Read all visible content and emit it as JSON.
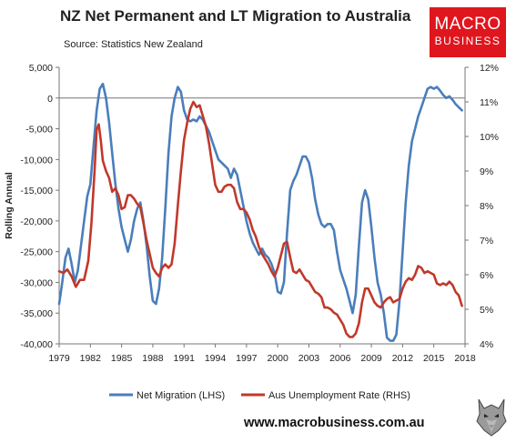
{
  "header": {
    "title": "NZ Net Permanent and LT Migration to Australia",
    "source": "Source: Statistics New Zealand"
  },
  "logo": {
    "line1": "MACRO",
    "line2": "BUSINESS",
    "color": "#e0161e"
  },
  "footer": {
    "url": "www.macrobusiness.com.au",
    "wolf_icon": "wolf-head-icon"
  },
  "chart_data": {
    "type": "line",
    "title": "NZ Net Permanent and LT Migration to Australia",
    "ylabel": "Rolling Annual",
    "x_ticks": [
      "1979",
      "1982",
      "1985",
      "1988",
      "1991",
      "1994",
      "1997",
      "2000",
      "2003",
      "2006",
      "2009",
      "2012",
      "2015",
      "2018"
    ],
    "xlim": [
      1979,
      2018
    ],
    "y_left": {
      "lim": [
        -40000,
        5000
      ],
      "ticks": [
        "5,000",
        "0",
        "-5,000",
        "-10,000",
        "-15,000",
        "-20,000",
        "-25,000",
        "-30,000",
        "-35,000",
        "-40,000"
      ]
    },
    "y_right": {
      "lim": [
        4,
        12
      ],
      "ticks": [
        "12%",
        "11%",
        "10%",
        "9%",
        "8%",
        "7%",
        "6%",
        "5%",
        "4%"
      ]
    },
    "grid": false,
    "legend": "bottom",
    "series": [
      {
        "name": "Net Migration (LHS)",
        "axis": "left",
        "color": "#4a7ebb",
        "points": [
          [
            1979.0,
            -33500
          ],
          [
            1979.3,
            -30000
          ],
          [
            1979.6,
            -26000
          ],
          [
            1979.9,
            -24500
          ],
          [
            1980.2,
            -27000
          ],
          [
            1980.5,
            -30000
          ],
          [
            1980.8,
            -28000
          ],
          [
            1981.1,
            -24000
          ],
          [
            1981.4,
            -20000
          ],
          [
            1981.7,
            -16000
          ],
          [
            1982.0,
            -14000
          ],
          [
            1982.3,
            -8000
          ],
          [
            1982.6,
            -2000
          ],
          [
            1982.9,
            1500
          ],
          [
            1983.2,
            2300
          ],
          [
            1983.5,
            0
          ],
          [
            1983.8,
            -4000
          ],
          [
            1984.1,
            -9000
          ],
          [
            1984.4,
            -14000
          ],
          [
            1984.7,
            -18000
          ],
          [
            1985.0,
            -21000
          ],
          [
            1985.3,
            -23000
          ],
          [
            1985.6,
            -25000
          ],
          [
            1985.9,
            -23000
          ],
          [
            1986.2,
            -20000
          ],
          [
            1986.5,
            -18000
          ],
          [
            1986.8,
            -17000
          ],
          [
            1987.1,
            -20000
          ],
          [
            1987.4,
            -24000
          ],
          [
            1987.7,
            -29000
          ],
          [
            1988.0,
            -33000
          ],
          [
            1988.3,
            -33500
          ],
          [
            1988.6,
            -31000
          ],
          [
            1988.9,
            -26000
          ],
          [
            1989.2,
            -18000
          ],
          [
            1989.5,
            -9000
          ],
          [
            1989.8,
            -3000
          ],
          [
            1990.1,
            0
          ],
          [
            1990.4,
            1800
          ],
          [
            1990.7,
            1000
          ],
          [
            1991.0,
            -2000
          ],
          [
            1991.3,
            -3500
          ],
          [
            1991.6,
            -3800
          ],
          [
            1991.9,
            -3500
          ],
          [
            1992.2,
            -3800
          ],
          [
            1992.5,
            -3000
          ],
          [
            1992.8,
            -3500
          ],
          [
            1993.1,
            -4500
          ],
          [
            1993.4,
            -5500
          ],
          [
            1993.7,
            -7000
          ],
          [
            1994.0,
            -8500
          ],
          [
            1994.3,
            -10000
          ],
          [
            1994.6,
            -10500
          ],
          [
            1994.9,
            -11000
          ],
          [
            1995.2,
            -11500
          ],
          [
            1995.5,
            -13000
          ],
          [
            1995.8,
            -11500
          ],
          [
            1996.1,
            -12500
          ],
          [
            1996.4,
            -15000
          ],
          [
            1996.7,
            -17500
          ],
          [
            1997.0,
            -20000
          ],
          [
            1997.3,
            -22000
          ],
          [
            1997.6,
            -23500
          ],
          [
            1997.9,
            -24500
          ],
          [
            1998.2,
            -25500
          ],
          [
            1998.5,
            -24500
          ],
          [
            1998.8,
            -25500
          ],
          [
            1999.1,
            -26000
          ],
          [
            1999.4,
            -27000
          ],
          [
            1999.7,
            -28500
          ],
          [
            2000.0,
            -31500
          ],
          [
            2000.3,
            -31800
          ],
          [
            2000.6,
            -30000
          ],
          [
            2000.9,
            -22000
          ],
          [
            2001.2,
            -15000
          ],
          [
            2001.5,
            -13500
          ],
          [
            2001.8,
            -12500
          ],
          [
            2002.1,
            -11000
          ],
          [
            2002.4,
            -9500
          ],
          [
            2002.7,
            -9500
          ],
          [
            2003.0,
            -10500
          ],
          [
            2003.3,
            -13000
          ],
          [
            2003.6,
            -16500
          ],
          [
            2003.9,
            -19000
          ],
          [
            2004.2,
            -20500
          ],
          [
            2004.5,
            -21000
          ],
          [
            2004.8,
            -20500
          ],
          [
            2005.1,
            -20500
          ],
          [
            2005.4,
            -21500
          ],
          [
            2005.7,
            -25000
          ],
          [
            2006.0,
            -28000
          ],
          [
            2006.3,
            -29500
          ],
          [
            2006.6,
            -31000
          ],
          [
            2006.9,
            -33000
          ],
          [
            2007.2,
            -35000
          ],
          [
            2007.5,
            -32000
          ],
          [
            2007.8,
            -24000
          ],
          [
            2008.1,
            -17000
          ],
          [
            2008.4,
            -15000
          ],
          [
            2008.7,
            -16500
          ],
          [
            2009.0,
            -21000
          ],
          [
            2009.3,
            -26000
          ],
          [
            2009.6,
            -30000
          ],
          [
            2009.9,
            -32000
          ],
          [
            2010.2,
            -35000
          ],
          [
            2010.5,
            -39000
          ],
          [
            2010.8,
            -39500
          ],
          [
            2011.1,
            -39500
          ],
          [
            2011.4,
            -38500
          ],
          [
            2011.7,
            -33000
          ],
          [
            2012.0,
            -25000
          ],
          [
            2012.3,
            -17000
          ],
          [
            2012.6,
            -11000
          ],
          [
            2012.9,
            -7000
          ],
          [
            2013.2,
            -5000
          ],
          [
            2013.5,
            -3000
          ],
          [
            2013.8,
            -1500
          ],
          [
            2014.1,
            0
          ],
          [
            2014.4,
            1500
          ],
          [
            2014.7,
            1800
          ],
          [
            2015.0,
            1500
          ],
          [
            2015.3,
            1800
          ],
          [
            2015.6,
            1200
          ],
          [
            2015.9,
            500
          ],
          [
            2016.2,
            0
          ],
          [
            2016.5,
            300
          ],
          [
            2016.8,
            -300
          ],
          [
            2017.1,
            -1000
          ],
          [
            2017.4,
            -1500
          ],
          [
            2017.7,
            -2000
          ]
        ]
      },
      {
        "name": "Aus Unemployment Rate (RHS)",
        "axis": "right",
        "color": "#c0392b",
        "points": [
          [
            1979.0,
            6.1
          ],
          [
            1979.4,
            6.05
          ],
          [
            1979.8,
            6.15
          ],
          [
            1980.2,
            5.95
          ],
          [
            1980.6,
            5.65
          ],
          [
            1981.0,
            5.85
          ],
          [
            1981.4,
            5.85
          ],
          [
            1981.8,
            6.4
          ],
          [
            1982.1,
            7.5
          ],
          [
            1982.4,
            9.0
          ],
          [
            1982.6,
            10.2
          ],
          [
            1982.8,
            10.35
          ],
          [
            1983.0,
            9.9
          ],
          [
            1983.2,
            9.3
          ],
          [
            1983.5,
            9.0
          ],
          [
            1983.8,
            8.8
          ],
          [
            1984.1,
            8.4
          ],
          [
            1984.4,
            8.5
          ],
          [
            1984.7,
            8.3
          ],
          [
            1985.0,
            7.9
          ],
          [
            1985.3,
            7.95
          ],
          [
            1985.6,
            8.3
          ],
          [
            1985.9,
            8.3
          ],
          [
            1986.2,
            8.2
          ],
          [
            1986.5,
            8.05
          ],
          [
            1986.8,
            7.95
          ],
          [
            1987.1,
            7.5
          ],
          [
            1987.4,
            7.0
          ],
          [
            1987.7,
            6.6
          ],
          [
            1988.0,
            6.2
          ],
          [
            1988.3,
            6.05
          ],
          [
            1988.6,
            5.95
          ],
          [
            1988.9,
            6.2
          ],
          [
            1989.2,
            6.3
          ],
          [
            1989.5,
            6.2
          ],
          [
            1989.8,
            6.3
          ],
          [
            1990.1,
            6.9
          ],
          [
            1990.4,
            8.0
          ],
          [
            1990.7,
            9.0
          ],
          [
            1991.0,
            9.9
          ],
          [
            1991.3,
            10.4
          ],
          [
            1991.6,
            10.8
          ],
          [
            1991.9,
            11.0
          ],
          [
            1992.2,
            10.85
          ],
          [
            1992.5,
            10.9
          ],
          [
            1992.8,
            10.6
          ],
          [
            1993.1,
            10.3
          ],
          [
            1993.4,
            9.8
          ],
          [
            1993.7,
            9.2
          ],
          [
            1994.0,
            8.6
          ],
          [
            1994.3,
            8.4
          ],
          [
            1994.6,
            8.4
          ],
          [
            1994.9,
            8.55
          ],
          [
            1995.2,
            8.6
          ],
          [
            1995.5,
            8.6
          ],
          [
            1995.8,
            8.5
          ],
          [
            1996.1,
            8.1
          ],
          [
            1996.4,
            7.9
          ],
          [
            1996.7,
            7.9
          ],
          [
            1997.0,
            7.8
          ],
          [
            1997.3,
            7.6
          ],
          [
            1997.6,
            7.3
          ],
          [
            1997.9,
            7.1
          ],
          [
            1998.2,
            6.8
          ],
          [
            1998.5,
            6.6
          ],
          [
            1998.8,
            6.45
          ],
          [
            1999.1,
            6.3
          ],
          [
            1999.4,
            6.1
          ],
          [
            1999.7,
            5.95
          ],
          [
            2000.0,
            6.2
          ],
          [
            2000.3,
            6.55
          ],
          [
            2000.6,
            6.9
          ],
          [
            2000.9,
            6.95
          ],
          [
            2001.2,
            6.5
          ],
          [
            2001.5,
            6.1
          ],
          [
            2001.8,
            6.05
          ],
          [
            2002.1,
            6.15
          ],
          [
            2002.4,
            6.0
          ],
          [
            2002.7,
            5.85
          ],
          [
            2003.0,
            5.8
          ],
          [
            2003.3,
            5.65
          ],
          [
            2003.6,
            5.5
          ],
          [
            2003.9,
            5.45
          ],
          [
            2004.2,
            5.35
          ],
          [
            2004.5,
            5.05
          ],
          [
            2004.8,
            5.05
          ],
          [
            2005.1,
            5.0
          ],
          [
            2005.4,
            4.9
          ],
          [
            2005.7,
            4.85
          ],
          [
            2006.0,
            4.7
          ],
          [
            2006.3,
            4.55
          ],
          [
            2006.6,
            4.3
          ],
          [
            2006.9,
            4.2
          ],
          [
            2007.2,
            4.2
          ],
          [
            2007.5,
            4.3
          ],
          [
            2007.8,
            4.6
          ],
          [
            2008.1,
            5.2
          ],
          [
            2008.4,
            5.6
          ],
          [
            2008.7,
            5.6
          ],
          [
            2009.0,
            5.4
          ],
          [
            2009.3,
            5.2
          ],
          [
            2009.6,
            5.1
          ],
          [
            2009.9,
            5.05
          ],
          [
            2010.2,
            5.2
          ],
          [
            2010.5,
            5.3
          ],
          [
            2010.8,
            5.35
          ],
          [
            2011.1,
            5.2
          ],
          [
            2011.4,
            5.25
          ],
          [
            2011.7,
            5.3
          ],
          [
            2012.0,
            5.6
          ],
          [
            2012.3,
            5.8
          ],
          [
            2012.6,
            5.9
          ],
          [
            2012.9,
            5.85
          ],
          [
            2013.2,
            6.0
          ],
          [
            2013.5,
            6.25
          ],
          [
            2013.8,
            6.2
          ],
          [
            2014.1,
            6.05
          ],
          [
            2014.4,
            6.1
          ],
          [
            2014.7,
            6.05
          ],
          [
            2015.0,
            6.0
          ],
          [
            2015.3,
            5.75
          ],
          [
            2015.6,
            5.7
          ],
          [
            2015.9,
            5.75
          ],
          [
            2016.2,
            5.7
          ],
          [
            2016.5,
            5.8
          ],
          [
            2016.8,
            5.7
          ],
          [
            2017.1,
            5.5
          ],
          [
            2017.4,
            5.4
          ],
          [
            2017.7,
            5.1
          ]
        ]
      }
    ]
  }
}
